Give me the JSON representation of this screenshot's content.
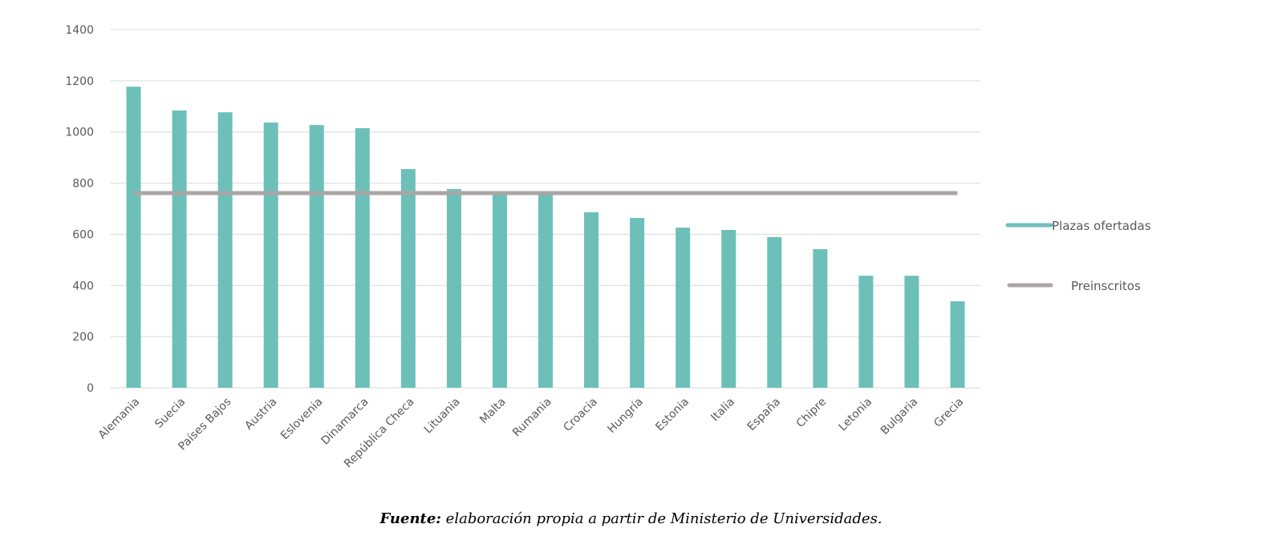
{
  "chart_data": {
    "type": "bar",
    "title": "",
    "xlabel": "",
    "ylabel": "",
    "ylim": [
      0,
      1400
    ],
    "yticks": [
      0,
      200,
      400,
      600,
      800,
      1000,
      1200,
      1400
    ],
    "grid": true,
    "legend_position": "right",
    "categories": [
      "Alemania",
      "Suecia",
      "Países Bajos",
      "Austria",
      "Eslovenia",
      "Dinamarca",
      "República Checa",
      "Lituania",
      "Malta",
      "Rumania",
      "Croacia",
      "Hungría",
      "Estonia",
      "Italia",
      "España",
      "Chipre",
      "Letonia",
      "Bulgaria",
      "Grecia"
    ],
    "series": [
      {
        "name": "Plazas ofertadas",
        "type": "bar",
        "color": "#6dc0b8",
        "values": [
          1177,
          1084,
          1077,
          1037,
          1027,
          1015,
          855,
          777,
          765,
          762,
          686,
          664,
          626,
          617,
          589,
          542,
          438,
          438,
          338
        ]
      },
      {
        "name": "Preinscritos",
        "type": "line",
        "color": "#aaa6a6",
        "values": [
          761,
          761,
          761,
          761,
          761,
          761,
          761,
          761,
          761,
          761,
          761,
          761,
          761,
          761,
          761,
          761,
          761,
          761,
          761
        ]
      }
    ]
  },
  "source": {
    "label": "Fuente:",
    "text": " elaboración propia a partir de Ministerio de Universidades."
  }
}
